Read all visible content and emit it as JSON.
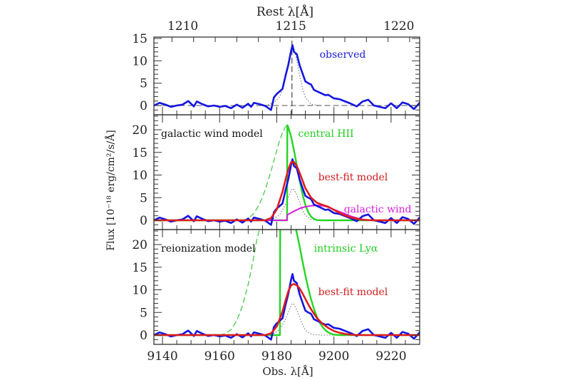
{
  "chart_data": [
    {
      "type": "line",
      "panel": "observed",
      "title": "",
      "xlabel": "Obs. λ[Å]",
      "ylabel": "Flux [10⁻¹⁸ erg/cm²/s/Å]",
      "top_xlabel": "Rest λ[Å]",
      "top_xticks": [
        1210,
        1215,
        1220
      ],
      "xlim": [
        9137,
        9230
      ],
      "ylim": [
        -2,
        15.5
      ],
      "yticks": [
        0,
        5,
        10,
        15
      ],
      "annotations": [
        {
          "text": "observed",
          "color": "#1a1adb",
          "x": 9195,
          "y": 11.5
        }
      ],
      "series": [
        {
          "name": "observed",
          "color": "#1414e0",
          "style": "solid",
          "width": 2.6,
          "x": [
            9137,
            9139,
            9141,
            9143,
            9145,
            9147,
            9149,
            9151,
            9152,
            9154,
            9156,
            9158,
            9160,
            9162,
            9164,
            9166,
            9168,
            9170,
            9171,
            9172,
            9174,
            9176,
            9178,
            9179,
            9180,
            9182,
            9183,
            9184,
            9185,
            9185.5,
            9186,
            9187,
            9188,
            9189,
            9190,
            9191,
            9192,
            9193,
            9195,
            9197,
            9198,
            9200,
            9202,
            9204,
            9206,
            9208,
            9210,
            9212,
            9214,
            9216,
            9218,
            9220,
            9222,
            9224,
            9226,
            9228,
            9230
          ],
          "y": [
            0,
            0.6,
            0.2,
            -0.3,
            0,
            0.2,
            1.0,
            -0.2,
            0.9,
            0.3,
            -0.2,
            0,
            -0.3,
            -0.1,
            -0.6,
            0.2,
            -0.5,
            0.4,
            -0.3,
            0.6,
            0.3,
            -0.1,
            -1.0,
            1.8,
            2.6,
            3.7,
            6.5,
            9.0,
            12.2,
            13.5,
            12.0,
            11.5,
            9.0,
            7.2,
            5.4,
            5.0,
            4.7,
            3.5,
            2.9,
            2.3,
            2.4,
            1.6,
            1.4,
            0.9,
            0.4,
            -0.2,
            0.9,
            1.3,
            0.0,
            -0.3,
            -0.6,
            0.5,
            -0.6,
            0.7,
            0.3,
            -0.8,
            0.6
          ]
        },
        {
          "name": "zero-level",
          "color": "#777777",
          "style": "dashed",
          "width": 1.3,
          "x": [
            9137,
            9230
          ],
          "y": [
            0,
            0
          ]
        },
        {
          "name": "line-center",
          "color": "#555555",
          "style": "dashed",
          "width": 1.3,
          "x": [
            9185.3,
            9185.3
          ],
          "y": [
            -2,
            15.5
          ]
        },
        {
          "name": "instrumental-profile",
          "color": "#555555",
          "style": "dotted",
          "width": 1.1,
          "x": [
            9176,
            9179,
            9181,
            9183,
            9184,
            9185,
            9185.5,
            9186,
            9187,
            9188,
            9189,
            9190,
            9192,
            9195
          ],
          "y": [
            0,
            0.6,
            1.9,
            6.0,
            9.5,
            12.7,
            13.3,
            12.8,
            10.2,
            6.8,
            3.9,
            1.8,
            0.3,
            0
          ]
        }
      ]
    },
    {
      "type": "line",
      "panel": "galactic wind model",
      "xlim": [
        9137,
        9230
      ],
      "ylim": [
        -2,
        23.5
      ],
      "yticks": [
        0,
        5,
        10,
        15,
        20
      ],
      "annotations": [
        {
          "text": "galactic wind model",
          "color": "#111111",
          "x": 9139.5,
          "y": 19.2
        },
        {
          "text": "central HII",
          "color": "#1ecc1e",
          "x": 9187.5,
          "y": 19.2
        },
        {
          "text": "best-fit model",
          "color": "#d11b1b",
          "x": 9194.5,
          "y": 9.6
        },
        {
          "text": "galactic wind",
          "color": "#d81ed8",
          "x": 9203.5,
          "y": 2.5
        }
      ],
      "series": [
        {
          "name": "observed",
          "color": "#1414e0",
          "style": "solid",
          "width": 2.6,
          "x": [
            9137,
            9139,
            9141,
            9143,
            9145,
            9147,
            9149,
            9151,
            9152,
            9154,
            9156,
            9158,
            9160,
            9162,
            9164,
            9166,
            9168,
            9170,
            9171,
            9172,
            9174,
            9176,
            9178,
            9179,
            9180,
            9182,
            9183,
            9184,
            9185,
            9185.5,
            9186,
            9187,
            9188,
            9189,
            9190,
            9191,
            9192,
            9193,
            9195,
            9197,
            9198,
            9200,
            9202,
            9204,
            9206,
            9208,
            9210,
            9212,
            9214,
            9216,
            9218,
            9220,
            9222,
            9224,
            9226,
            9228,
            9230
          ],
          "y": [
            0,
            0.6,
            0.2,
            -0.3,
            0,
            0.2,
            1.0,
            -0.2,
            0.9,
            0.3,
            -0.2,
            0,
            -0.3,
            -0.1,
            -0.6,
            0.2,
            -0.5,
            0.4,
            -0.3,
            0.6,
            0.3,
            -0.1,
            -1.0,
            1.8,
            2.6,
            3.7,
            6.5,
            9.0,
            12.2,
            13.5,
            12.0,
            11.5,
            9.0,
            7.2,
            5.4,
            5.0,
            4.7,
            3.5,
            2.9,
            2.3,
            2.4,
            1.6,
            1.4,
            0.9,
            0.4,
            -0.2,
            0.9,
            1.3,
            0.0,
            -0.3,
            -0.6,
            0.5,
            -0.6,
            0.7,
            0.3,
            -0.8,
            0.6
          ]
        },
        {
          "name": "central HII (intrinsic)",
          "color": "#22d622",
          "style": "solid",
          "width": 2.4,
          "x": [
            9137,
            9183.6,
            9183.7,
            9184,
            9185,
            9186,
            9187,
            9188,
            9189,
            9190,
            9191,
            9192,
            9193,
            9194,
            9196,
            9230
          ],
          "y": [
            0,
            0,
            21.0,
            20.6,
            18.5,
            15.5,
            12.2,
            8.8,
            5.8,
            3.4,
            1.8,
            0.8,
            0.3,
            0.05,
            0,
            0
          ]
        },
        {
          "name": "central HII (unabsorbed, dashed)",
          "color": "#3fc43f",
          "style": "dashed",
          "width": 1.2,
          "x": [
            9168,
            9170,
            9172,
            9174,
            9176,
            9178,
            9180,
            9181,
            9182,
            9183,
            9183.6
          ],
          "y": [
            0,
            0.4,
            1.5,
            3.6,
            6.8,
            10.9,
            15.4,
            17.6,
            19.4,
            20.6,
            21.0
          ]
        },
        {
          "name": "best-fit model",
          "color": "#e01c1c",
          "style": "solid",
          "width": 2.6,
          "x": [
            9137,
            9170,
            9176,
            9178,
            9180,
            9182,
            9183,
            9184,
            9185,
            9186,
            9187,
            9188,
            9189,
            9190,
            9192,
            9194,
            9196,
            9198,
            9200,
            9203,
            9206,
            9210,
            9214,
            9230
          ],
          "y": [
            0,
            0,
            0,
            0.5,
            2.4,
            6.3,
            8.8,
            11.2,
            12.8,
            12.9,
            12.0,
            10.5,
            8.8,
            7.1,
            5.0,
            3.9,
            3.4,
            3.0,
            2.3,
            1.3,
            0.6,
            0.1,
            0,
            0
          ]
        },
        {
          "name": "galactic wind",
          "color": "#d81ed8",
          "style": "solid",
          "width": 2.0,
          "x": [
            9137,
            9183.6,
            9183.7,
            9186,
            9188,
            9190,
            9192,
            9194,
            9196,
            9198,
            9200,
            9202,
            9204,
            9206,
            9208,
            9210,
            9212,
            9214,
            9230
          ],
          "y": [
            0,
            0,
            1.2,
            2.0,
            2.6,
            3.0,
            3.2,
            3.3,
            3.2,
            2.9,
            2.4,
            1.9,
            1.4,
            0.9,
            0.5,
            0.2,
            0.05,
            0,
            0
          ]
        },
        {
          "name": "instrumental-profile",
          "color": "#555555",
          "style": "dotted",
          "width": 1.1,
          "x": [
            9176,
            9179,
            9181,
            9183,
            9184,
            9185,
            9185.5,
            9186,
            9187,
            9188,
            9189,
            9190,
            9192,
            9195
          ],
          "y": [
            0,
            0.4,
            1.2,
            3.4,
            5.0,
            6.6,
            7.0,
            6.8,
            5.6,
            3.9,
            2.3,
            1.1,
            0.2,
            0
          ]
        }
      ]
    },
    {
      "type": "line",
      "panel": "reionization model",
      "xlim": [
        9137,
        9230
      ],
      "ylim": [
        -2,
        23.5
      ],
      "yticks": [
        0,
        5,
        10,
        15,
        20
      ],
      "annotations": [
        {
          "text": "reionization model",
          "color": "#111111",
          "x": 9139.5,
          "y": 19.2
        },
        {
          "text": "intrinsic Lyα",
          "color": "#1ecc1e",
          "x": 9193.0,
          "y": 19.2
        },
        {
          "text": "best-fit model",
          "color": "#d11b1b",
          "x": 9194.5,
          "y": 9.6
        }
      ],
      "series": [
        {
          "name": "observed",
          "color": "#1414e0",
          "style": "solid",
          "width": 2.6,
          "x": [
            9137,
            9139,
            9141,
            9143,
            9145,
            9147,
            9149,
            9151,
            9152,
            9154,
            9156,
            9158,
            9160,
            9162,
            9164,
            9166,
            9168,
            9170,
            9171,
            9172,
            9174,
            9176,
            9178,
            9179,
            9180,
            9182,
            9183,
            9184,
            9185,
            9185.5,
            9186,
            9187,
            9188,
            9189,
            9190,
            9191,
            9192,
            9193,
            9195,
            9197,
            9198,
            9200,
            9202,
            9204,
            9206,
            9208,
            9210,
            9212,
            9214,
            9216,
            9218,
            9220,
            9222,
            9224,
            9226,
            9228,
            9230
          ],
          "y": [
            0,
            0.6,
            0.2,
            -0.3,
            0,
            0.2,
            1.0,
            -0.2,
            0.9,
            0.3,
            -0.2,
            0,
            -0.3,
            -0.1,
            -0.6,
            0.2,
            -0.5,
            0.4,
            -0.3,
            0.6,
            0.3,
            -0.1,
            -1.0,
            1.8,
            2.6,
            3.7,
            6.5,
            9.0,
            12.2,
            13.5,
            12.0,
            11.5,
            9.0,
            7.2,
            5.4,
            5.0,
            4.7,
            3.5,
            2.9,
            2.3,
            2.4,
            1.6,
            1.4,
            0.9,
            0.4,
            -0.2,
            0.9,
            1.3,
            0.0,
            -0.3,
            -0.6,
            0.5,
            -0.6,
            0.7,
            0.3,
            -0.8,
            0.6
          ]
        },
        {
          "name": "intrinsic Lyα (transmitted)",
          "color": "#22d622",
          "style": "solid",
          "width": 2.4,
          "x": [
            9137,
            9181.0,
            9181.1,
            9181.2
          ],
          "y": [
            0,
            0,
            0,
            23.5
          ]
        },
        {
          "name": "intrinsic Lyα (red wing)",
          "color": "#22d622",
          "style": "solid",
          "width": 2.4,
          "x": [
            9186.7,
            9188,
            9189,
            9190,
            9191,
            9192,
            9193,
            9194,
            9195,
            9196,
            9197,
            9198,
            9199,
            9200,
            9202,
            9230
          ],
          "y": [
            23.5,
            19.6,
            16.3,
            13.2,
            10.4,
            7.9,
            5.8,
            4.1,
            2.8,
            1.8,
            1.1,
            0.6,
            0.3,
            0.1,
            0,
            0
          ]
        },
        {
          "name": "intrinsic Lyα (blue side, dashed)",
          "color": "#3fc43f",
          "style": "dashed",
          "width": 1.2,
          "x": [
            9160,
            9162,
            9164,
            9166,
            9168,
            9170,
            9171,
            9172,
            9173,
            9174
          ],
          "y": [
            0,
            0.3,
            1.2,
            3.2,
            6.5,
            11.2,
            14.2,
            17.5,
            21.0,
            23.5
          ]
        },
        {
          "name": "best-fit model",
          "color": "#e01c1c",
          "style": "solid",
          "width": 2.6,
          "x": [
            9137,
            9176,
            9178,
            9180,
            9182,
            9183,
            9184,
            9185,
            9186,
            9187,
            9188,
            9189,
            9190,
            9191,
            9192,
            9194,
            9196,
            9198,
            9200,
            9202,
            9204,
            9206,
            9208,
            9212,
            9230
          ],
          "y": [
            0,
            0,
            0.4,
            1.9,
            5.2,
            7.5,
            9.6,
            11.0,
            11.3,
            11.0,
            10.3,
            9.2,
            8.0,
            6.8,
            5.7,
            3.8,
            2.5,
            1.6,
            0.9,
            0.5,
            0.25,
            0.1,
            0,
            0,
            0
          ]
        },
        {
          "name": "instrumental-profile",
          "color": "#555555",
          "style": "dotted",
          "width": 1.1,
          "x": [
            9176,
            9179,
            9181,
            9183,
            9184,
            9185,
            9185.5,
            9186,
            9187,
            9188,
            9189,
            9190,
            9192,
            9195,
            9215
          ],
          "y": [
            0,
            0.4,
            1.2,
            3.4,
            5.0,
            6.6,
            7.0,
            6.8,
            5.6,
            3.9,
            2.3,
            1.1,
            0.2,
            0,
            0
          ]
        }
      ]
    }
  ],
  "shared_axes": {
    "bottom_xticks": [
      9140,
      9160,
      9180,
      9200,
      9220
    ],
    "bottom_xlabel": "Obs. λ[Å]",
    "top_xticks": [
      1210,
      1215,
      1220
    ],
    "top_xlabel": "Rest λ[Å]",
    "rest_to_obs_factor": 7.5596,
    "ylabel": "Flux [10⁻¹⁸ erg/cm²/s/Å]"
  }
}
